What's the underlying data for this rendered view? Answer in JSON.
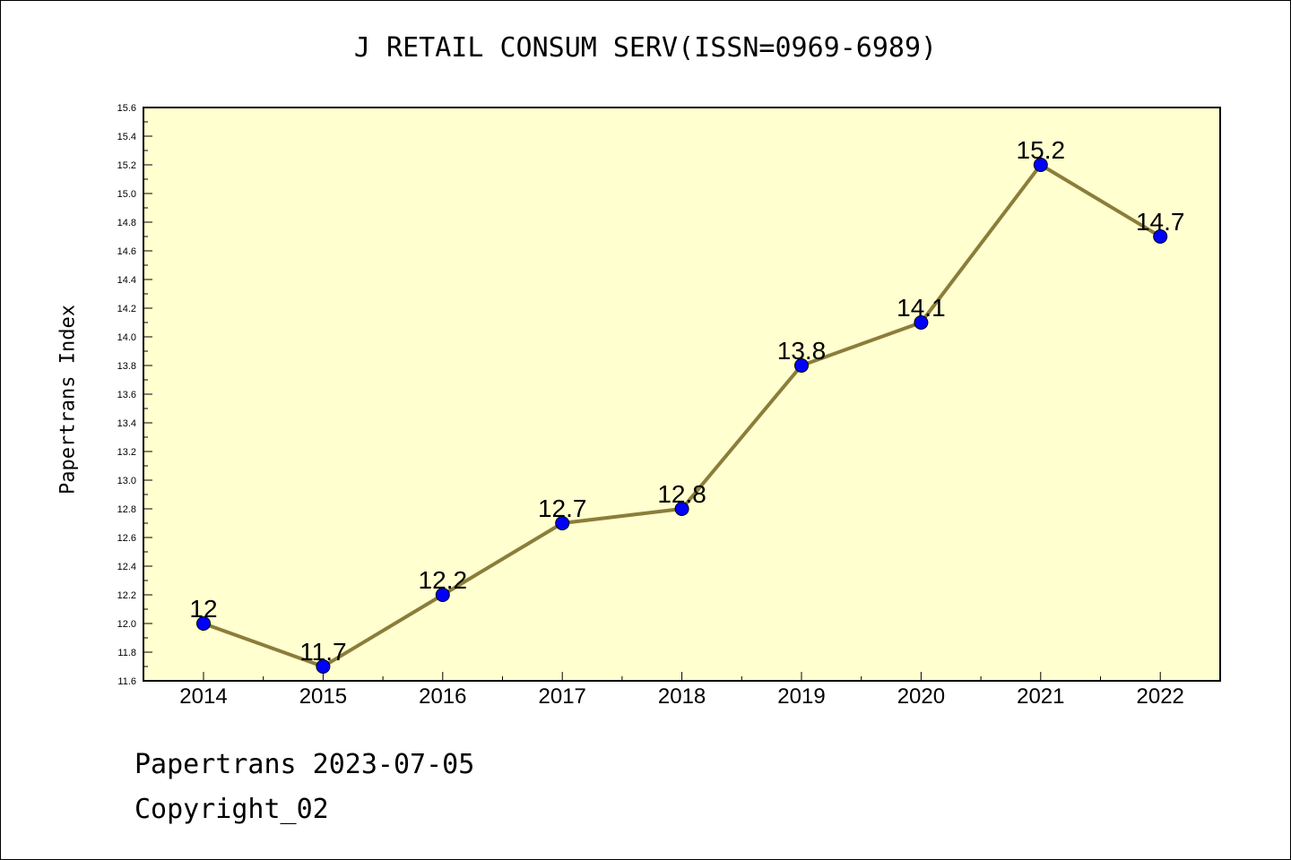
{
  "title": "J RETAIL CONSUM SERV(ISSN=0969-6989)",
  "footer": {
    "line1": "Papertrans 2023-07-05",
    "line2": "Copyright_02"
  },
  "chart_data": {
    "type": "line",
    "ylabel": "Papertrans Index",
    "xlabel": "",
    "categories": [
      "2014",
      "2015",
      "2016",
      "2017",
      "2018",
      "2019",
      "2020",
      "2021",
      "2022"
    ],
    "series": [
      {
        "values": [
          12,
          11.7,
          12.2,
          12.7,
          12.8,
          13.8,
          14.1,
          15.2,
          14.7
        ],
        "data_labels": [
          "12",
          "11.7",
          "12.2",
          "12.7",
          "12.8",
          "13.8",
          "14.1",
          "15.2",
          "14.7"
        ]
      }
    ],
    "ylim": [
      11.6,
      15.6
    ],
    "ytick_step": 0.2,
    "yticks": [
      "11.6",
      "11.8",
      "12.0",
      "12.2",
      "12.4",
      "12.6",
      "12.8",
      "13.0",
      "13.2",
      "13.4",
      "13.6",
      "13.8",
      "14.0",
      "14.2",
      "14.4",
      "14.6",
      "14.8",
      "15.0",
      "15.2",
      "15.4",
      "15.6"
    ],
    "colors": {
      "plot_background": "#ffffd0",
      "line": "#8b7d3a",
      "marker": "#0000ff",
      "marker_edge": "#000000"
    },
    "grid": false,
    "legend": "none"
  }
}
